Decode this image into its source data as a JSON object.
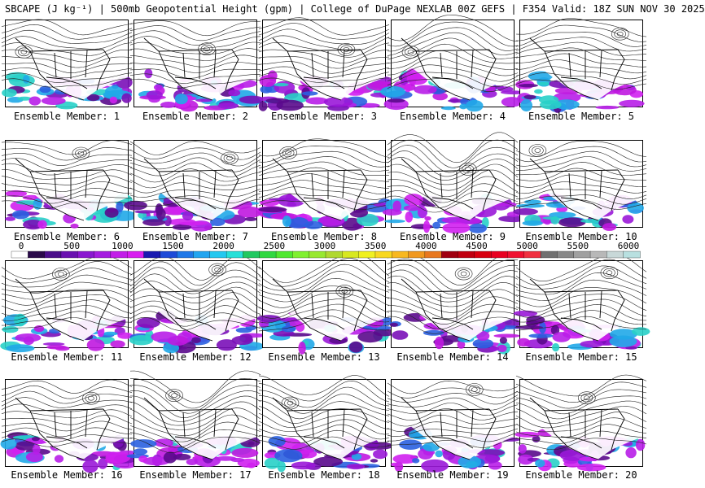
{
  "header": {
    "title": "SBCAPE (J kg⁻¹) | 500mb Geopotential Height (gpm) | College of DuPage NEXLAB 00Z GEFS | F354 Valid: 18Z SUN NOV 30 2025"
  },
  "map": {
    "region": "North America",
    "contour_color": "#000000",
    "land_color": "#ffffff"
  },
  "colorbar": {
    "ticks": [
      "0",
      "500",
      "1000",
      "1500",
      "2000",
      "2500",
      "3000",
      "3500",
      "4000",
      "4500",
      "5000",
      "5500",
      "6000"
    ],
    "colors": [
      "#ffffff",
      "#2a0a4a",
      "#4b0f8a",
      "#6a12b0",
      "#8a18d0",
      "#a51de0",
      "#c21ee8",
      "#d81ef0",
      "#1a1ab0",
      "#1e4bd8",
      "#1f78e8",
      "#22a5f0",
      "#24c8f0",
      "#26e0d8",
      "#20c860",
      "#30d840",
      "#50e830",
      "#80f030",
      "#98e830",
      "#b0d830",
      "#d8e820",
      "#f0f020",
      "#f8d820",
      "#f8b820",
      "#f09820",
      "#e87820",
      "#a00010",
      "#c00010",
      "#d80010",
      "#e80020",
      "#f01030",
      "#f03040",
      "#707070",
      "#888888",
      "#a0a0a0",
      "#b8b8b8",
      "#c8d8d8",
      "#b8e0e0"
    ]
  },
  "members": [
    {
      "label": "Ensemble Member: 1"
    },
    {
      "label": "Ensemble Member: 2"
    },
    {
      "label": "Ensemble Member: 3"
    },
    {
      "label": "Ensemble Member: 4"
    },
    {
      "label": "Ensemble Member: 5"
    },
    {
      "label": "Ensemble Member: 6"
    },
    {
      "label": "Ensemble Member: 7"
    },
    {
      "label": "Ensemble Member: 8"
    },
    {
      "label": "Ensemble Member: 9"
    },
    {
      "label": "Ensemble Member: 10"
    },
    {
      "label": "Ensemble Member: 11"
    },
    {
      "label": "Ensemble Member: 12"
    },
    {
      "label": "Ensemble Member: 13"
    },
    {
      "label": "Ensemble Member: 14"
    },
    {
      "label": "Ensemble Member: 15"
    },
    {
      "label": "Ensemble Member: 16"
    },
    {
      "label": "Ensemble Member: 17"
    },
    {
      "label": "Ensemble Member: 18"
    },
    {
      "label": "Ensemble Member: 19"
    },
    {
      "label": "Ensemble Member: 20"
    }
  ]
}
